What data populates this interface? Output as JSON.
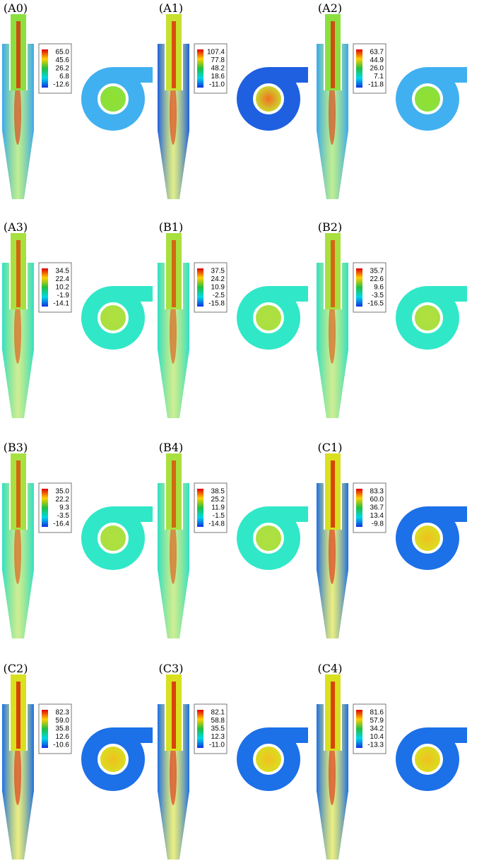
{
  "panels": [
    {
      "label": "(A0)",
      "legend": [
        "65.0",
        "45.6",
        "26.2",
        "6.8",
        "-12.6"
      ]
    },
    {
      "label": "(A1)",
      "legend": [
        "107.4",
        "77.8",
        "48.2",
        "18.6",
        "-11.0"
      ]
    },
    {
      "label": "(A2)",
      "legend": [
        "63.7",
        "44.9",
        "26.0",
        "7.1",
        "-11.8"
      ]
    },
    {
      "label": "(A3)",
      "legend": [
        "34.5",
        "22.4",
        "10.2",
        "-1.9",
        "-14.1"
      ]
    },
    {
      "label": "(B1)",
      "legend": [
        "37.5",
        "24.2",
        "10.9",
        "-2.5",
        "-15.8"
      ]
    },
    {
      "label": "(B2)",
      "legend": [
        "35.7",
        "22.6",
        "9.6",
        "-3.5",
        "-16.5"
      ]
    },
    {
      "label": "(B3)",
      "legend": [
        "35.0",
        "22.2",
        "9.3",
        "-3.5",
        "-16.4"
      ]
    },
    {
      "label": "(B4)",
      "legend": [
        "38.5",
        "25.2",
        "11.9",
        "-1.5",
        "-14.8"
      ]
    },
    {
      "label": "(C1)",
      "legend": [
        "83.3",
        "60.0",
        "36.7",
        "13.4",
        "-9.8"
      ]
    },
    {
      "label": "(C2)",
      "legend": [
        "82.3",
        "59.0",
        "35.8",
        "12.6",
        "-10.6"
      ]
    },
    {
      "label": "(C3)",
      "legend": [
        "82.1",
        "58.8",
        "35.5",
        "12.3",
        "-11.0"
      ]
    },
    {
      "label": "(C4)",
      "legend": [
        "81.6",
        "57.9",
        "34.2",
        "10.4",
        "-13.3"
      ]
    }
  ]
}
